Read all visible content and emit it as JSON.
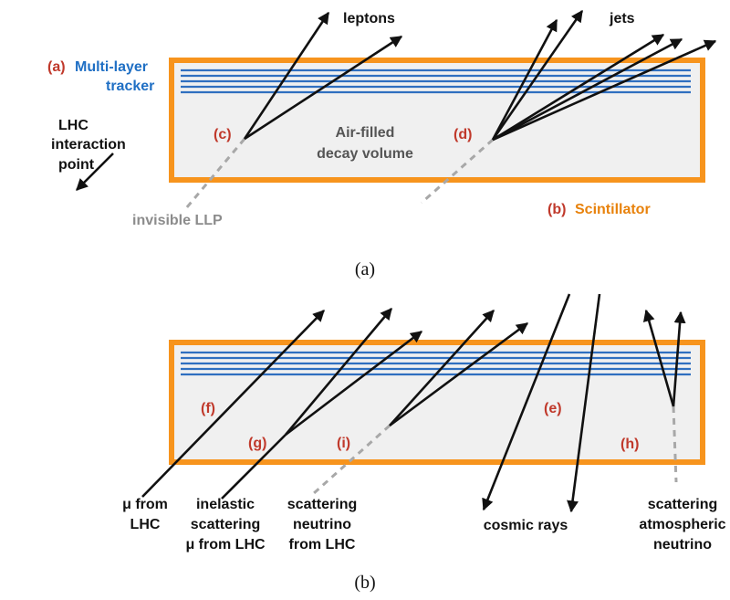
{
  "panel_a": {
    "caption": "(a)",
    "tracker_tag": "(a)",
    "tracker_line1": "Multi-layer",
    "tracker_line2": "tracker",
    "leptons": "leptons",
    "jets": "jets",
    "lhc_line1": "LHC",
    "lhc_line2": "interaction",
    "lhc_line3": "point",
    "tag_c": "(c)",
    "tag_d": "(d)",
    "volume_line1": "Air-filled",
    "volume_line2": "decay volume",
    "scint_tag": "(b)",
    "scint_label": "Scintillator",
    "invisible_llp": "invisible LLP"
  },
  "panel_b": {
    "caption": "(b)",
    "tag_f": "(f)",
    "tag_g": "(g)",
    "tag_i": "(i)",
    "tag_e": "(e)",
    "tag_h": "(h)",
    "mu_line1": "μ from",
    "mu_line2": "LHC",
    "inel_line1": "inelastic",
    "inel_line2": "scattering",
    "inel_line3": "μ from LHC",
    "scatnu_line1": "scattering",
    "scatnu_line2": "neutrino",
    "scatnu_line3": "from LHC",
    "cosmic": "cosmic rays",
    "atm_line1": "scattering",
    "atm_line2": "atmospheric",
    "atm_line3": "neutrino"
  },
  "colors": {
    "frame": "#f7941d",
    "tracker": "#2f6fc0",
    "tag": "#c0392b",
    "scintillator_text": "#e8820c"
  }
}
